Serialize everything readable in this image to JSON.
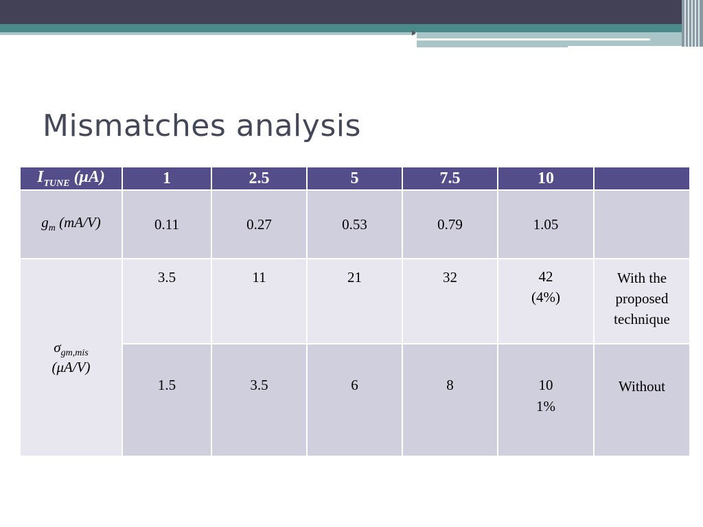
{
  "slide": {
    "title": "Mismatches analysis"
  },
  "table": {
    "header": {
      "label_main": "I",
      "label_sub": "TUNE",
      "label_unit": " (μA)",
      "values": [
        "1",
        "2.5",
        "5",
        "7.5",
        "10",
        ""
      ]
    },
    "gm_row": {
      "label_main": "g",
      "label_sub": "m",
      "label_unit": " (mA/V)",
      "values": [
        "0.11",
        "0.27",
        "0.53",
        "0.79",
        "1.05",
        ""
      ]
    },
    "sigma_label": {
      "main": "σ",
      "sub": "gm,mis",
      "unit": "(μA/V)"
    },
    "with_row": {
      "values": [
        "3.5",
        "11",
        "21",
        "32"
      ],
      "last_value": "42",
      "last_percent": "(4%)",
      "note": [
        "With the",
        "proposed",
        "technique"
      ]
    },
    "without_row": {
      "values": [
        "1.5",
        "3.5",
        "6",
        "8"
      ],
      "last_value": "10",
      "last_percent": "1%",
      "note": "Without"
    }
  }
}
